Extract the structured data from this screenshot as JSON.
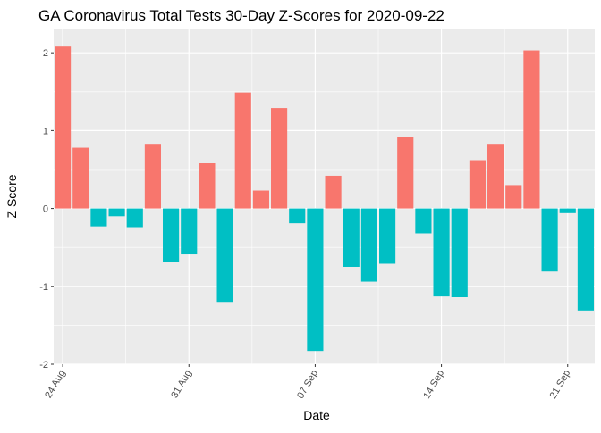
{
  "chart_data": {
    "type": "bar",
    "title": "GA Coronavirus Total Tests 30-Day Z-Scores for 2020-09-22",
    "xlabel": "Date",
    "ylabel": "Z Score",
    "ylim": [
      -2.0,
      2.3
    ],
    "yticks": [
      -2,
      -1,
      0,
      1,
      2
    ],
    "xticks": [
      {
        "date": "2020-08-24",
        "label": "24 Aug"
      },
      {
        "date": "2020-08-31",
        "label": "31 Aug"
      },
      {
        "date": "2020-09-07",
        "label": "07 Sep"
      },
      {
        "date": "2020-09-14",
        "label": "14 Sep"
      },
      {
        "date": "2020-09-21",
        "label": "21 Sep"
      }
    ],
    "x": [
      "2020-08-24",
      "2020-08-25",
      "2020-08-26",
      "2020-08-27",
      "2020-08-28",
      "2020-08-29",
      "2020-08-30",
      "2020-08-31",
      "2020-09-01",
      "2020-09-02",
      "2020-09-03",
      "2020-09-04",
      "2020-09-05",
      "2020-09-06",
      "2020-09-07",
      "2020-09-08",
      "2020-09-09",
      "2020-09-10",
      "2020-09-11",
      "2020-09-12",
      "2020-09-13",
      "2020-09-14",
      "2020-09-15",
      "2020-09-16",
      "2020-09-17",
      "2020-09-18",
      "2020-09-19",
      "2020-09-20",
      "2020-09-21",
      "2020-09-22"
    ],
    "values": [
      2.08,
      0.78,
      -0.23,
      -0.1,
      -0.24,
      0.83,
      -0.69,
      -0.59,
      0.58,
      -1.2,
      1.49,
      0.23,
      1.29,
      -0.19,
      -1.83,
      0.42,
      -0.75,
      -0.94,
      -0.71,
      0.92,
      -0.32,
      -1.13,
      -1.14,
      0.62,
      0.83,
      0.3,
      2.03,
      -0.81,
      -0.06,
      -1.31
    ],
    "colors": {
      "positive": "#F8766D",
      "negative": "#00BFC4"
    },
    "grid": true,
    "legend": "none"
  }
}
